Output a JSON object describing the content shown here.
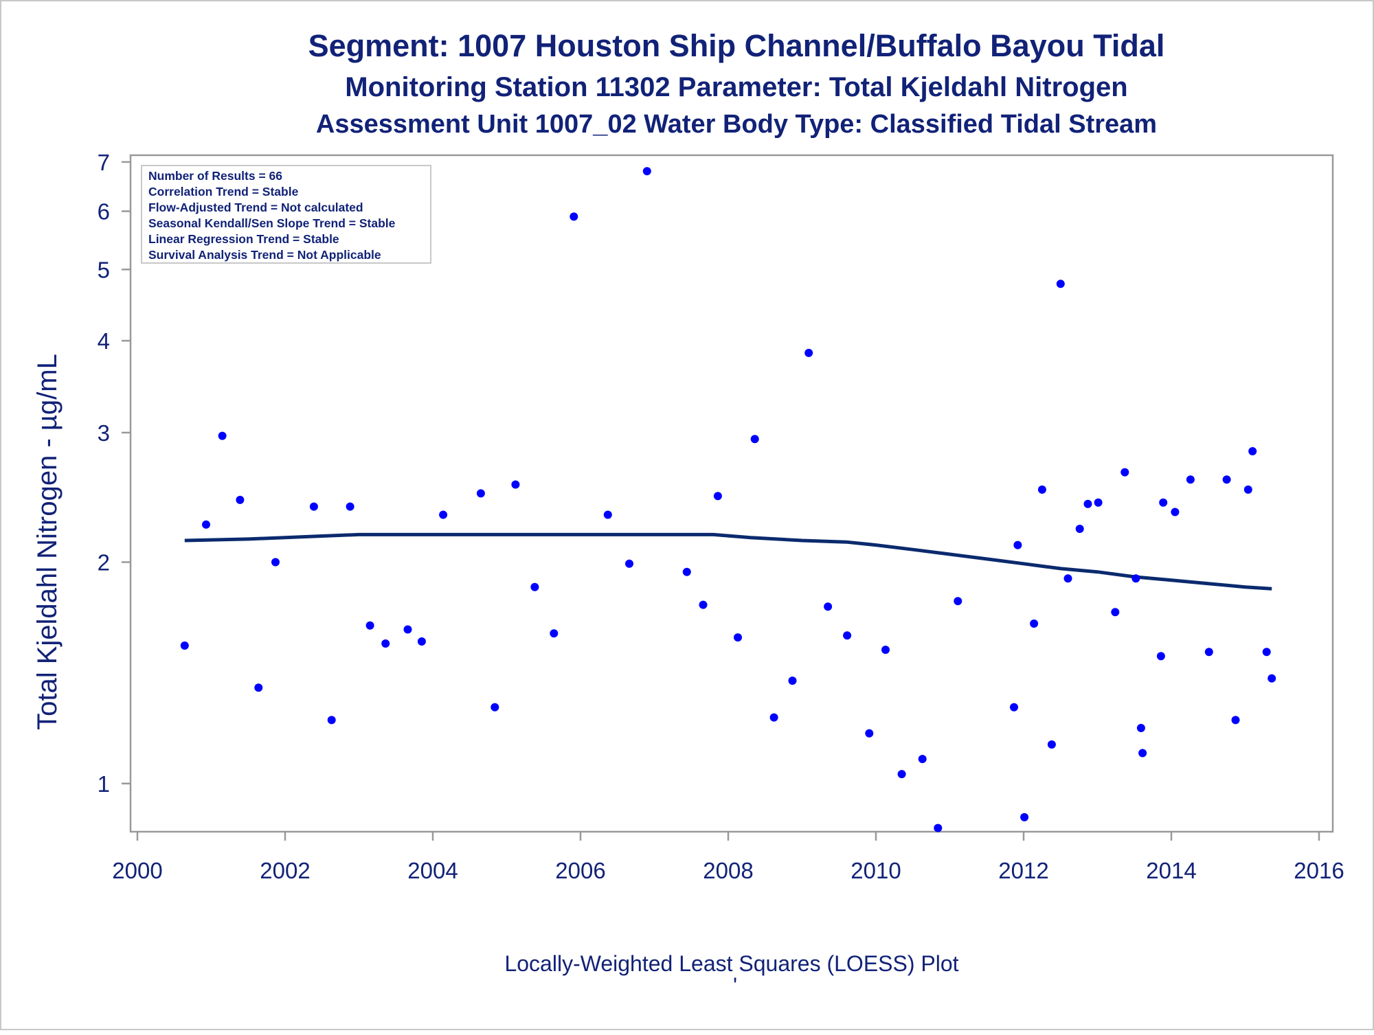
{
  "titles": {
    "line1": "Segment: 1007  Houston Ship Channel/Buffalo Bayou Tidal",
    "line2": "Monitoring Station 11302 Parameter: Total Kjeldahl Nitrogen",
    "line3": "Assessment Unit 1007_02   Water Body Type: Classified Tidal Stream"
  },
  "footnote": "Locally-Weighted Least Squares (LOESS) Plot",
  "footnote_mark": "'",
  "stats_box": [
    "Number of Results = 66",
    "Correlation Trend = Stable",
    "Flow-Adjusted Trend = Not calculated",
    "Seasonal Kendall/Sen Slope Trend = Stable",
    "Linear Regression Trend = Stable",
    "Survival Analysis Trend = Not Applicable"
  ],
  "colors": {
    "title": "#112277",
    "points": "#0000ff",
    "loess_line": "#0b2a6e",
    "axis": "#999999"
  },
  "chart_data": {
    "type": "scatter",
    "ylabel": "Total Kjeldahl Nitrogen -  µg/mL",
    "xlabel": "",
    "y_scale": "log",
    "xlim": [
      2000,
      2016
    ],
    "ylim": [
      0.86,
      7.15
    ],
    "x_ticks": [
      2000,
      2002,
      2004,
      2006,
      2008,
      2010,
      2012,
      2014,
      2016
    ],
    "y_ticks": [
      1,
      2,
      3,
      4,
      5,
      6,
      7
    ],
    "grid": false,
    "series": [
      {
        "kind": "points",
        "x": [
          2000.64,
          2000.93,
          2001.15,
          2001.39,
          2001.64,
          2001.87,
          2002.39,
          2002.63,
          2002.88,
          2003.15,
          2003.36,
          2003.66,
          2003.85,
          2004.14,
          2004.65,
          2004.84,
          2005.12,
          2005.38,
          2005.64,
          2005.91,
          2006.37,
          2006.66,
          2006.9,
          2007.44,
          2007.66,
          2007.86,
          2008.13,
          2008.36,
          2008.62,
          2008.87,
          2009.09,
          2009.35,
          2009.61,
          2009.91,
          2010.13,
          2010.35,
          2010.63,
          2010.84,
          2011.11,
          2011.87,
          2011.92,
          2012.01,
          2012.14,
          2012.25,
          2012.38,
          2012.5,
          2012.6,
          2012.76,
          2012.87,
          2013.01,
          2013.24,
          2013.37,
          2013.52,
          2013.59,
          2013.61,
          2013.86,
          2013.89,
          2014.05,
          2014.26,
          2014.51,
          2014.75,
          2014.87,
          2015.04,
          2015.1,
          2015.29,
          2015.36
        ],
        "y": [
          1.54,
          2.25,
          2.97,
          2.43,
          1.35,
          2.0,
          2.38,
          1.22,
          2.38,
          1.64,
          1.55,
          1.62,
          1.56,
          2.32,
          2.48,
          1.27,
          2.55,
          1.85,
          1.6,
          5.9,
          2.32,
          1.99,
          6.8,
          1.94,
          1.75,
          2.46,
          1.58,
          2.94,
          1.23,
          1.38,
          3.85,
          1.74,
          1.59,
          1.17,
          1.52,
          1.03,
          1.08,
          0.87,
          1.77,
          1.27,
          2.11,
          0.9,
          1.65,
          2.51,
          1.13,
          4.78,
          1.9,
          2.22,
          2.4,
          2.41,
          1.71,
          2.65,
          1.9,
          1.19,
          1.1,
          1.49,
          2.41,
          2.34,
          2.59,
          1.51,
          2.59,
          1.22,
          2.51,
          2.83,
          1.51,
          1.39
        ]
      },
      {
        "kind": "loess",
        "x": [
          2000.64,
          2001.5,
          2002.5,
          2003.0,
          2004.0,
          2005.0,
          2006.0,
          2007.0,
          2007.8,
          2008.3,
          2009.0,
          2009.6,
          2010.0,
          2010.5,
          2011.0,
          2011.5,
          2012.0,
          2012.5,
          2013.0,
          2013.5,
          2014.0,
          2014.5,
          2015.0,
          2015.36
        ],
        "y": [
          2.14,
          2.15,
          2.17,
          2.18,
          2.18,
          2.18,
          2.18,
          2.18,
          2.18,
          2.16,
          2.14,
          2.13,
          2.11,
          2.08,
          2.05,
          2.02,
          1.99,
          1.96,
          1.94,
          1.91,
          1.89,
          1.87,
          1.85,
          1.84
        ]
      }
    ]
  }
}
